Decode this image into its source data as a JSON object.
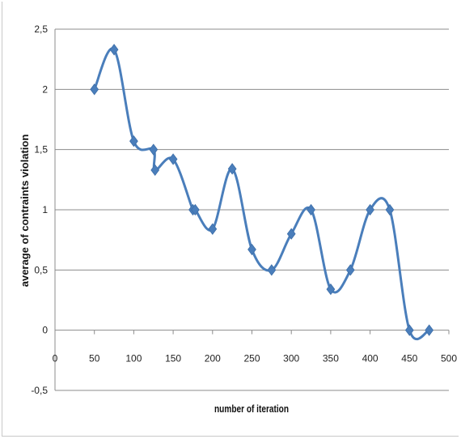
{
  "chart_data": {
    "type": "scatter",
    "title": "",
    "xlabel": "number of iteration",
    "ylabel": "average of contraints violation",
    "xlim": [
      0,
      500
    ],
    "ylim": [
      -0.5,
      2.5
    ],
    "x_ticks": [
      0,
      50,
      100,
      150,
      200,
      250,
      300,
      350,
      400,
      450,
      500
    ],
    "x_tick_labels": [
      "0",
      "50",
      "100",
      "150",
      "200",
      "250",
      "300",
      "350",
      "400",
      "450",
      "500"
    ],
    "y_ticks": [
      -0.5,
      0,
      0.5,
      1,
      1.5,
      2,
      2.5
    ],
    "y_tick_labels": [
      "-0,5",
      "0",
      "0,5",
      "1",
      "1,5",
      "2",
      "2,5"
    ],
    "grid": "horizontal",
    "legend": "none",
    "line": "smooth",
    "marker": "diamond",
    "color": "#4a7ebb",
    "series": [
      {
        "x": [
          50,
          75,
          100,
          125,
          127,
          150,
          175,
          178,
          200,
          225,
          250,
          275,
          300,
          325,
          350,
          375,
          400,
          425,
          450,
          475
        ],
        "y": [
          2.0,
          2.33,
          1.57,
          1.5,
          1.33,
          1.42,
          1.0,
          1.0,
          0.84,
          1.34,
          0.67,
          0.5,
          0.8,
          1.0,
          0.34,
          0.5,
          1.0,
          1.0,
          0.0,
          0.0
        ]
      }
    ]
  }
}
